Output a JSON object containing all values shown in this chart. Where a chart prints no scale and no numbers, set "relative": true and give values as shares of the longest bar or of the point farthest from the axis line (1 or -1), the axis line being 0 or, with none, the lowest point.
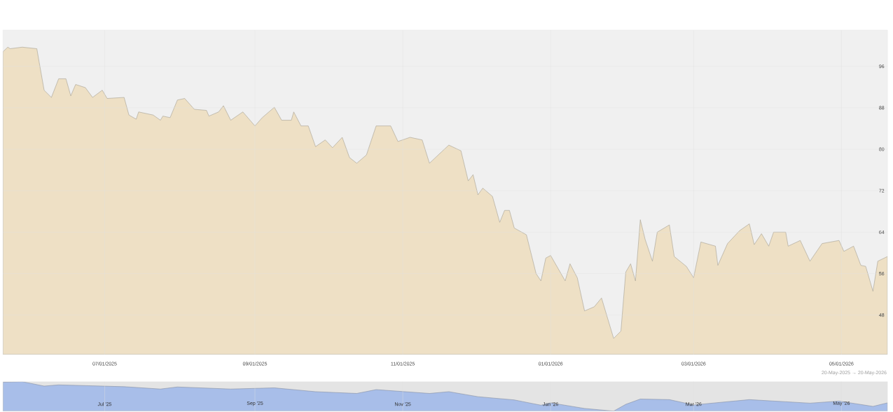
{
  "chart_data": [
    {
      "type": "area",
      "color": "#eee0c5",
      "grid": true,
      "xlim": [
        "2025-05-20",
        "2026-05-20"
      ],
      "ylim": [
        40.4,
        103
      ],
      "xticks": [
        {
          "value": "2025-07-01",
          "label": "07/01/2025"
        },
        {
          "value": "2025-09-01",
          "label": "09/01/2025"
        },
        {
          "value": "2025-11-01",
          "label": "11/01/2025"
        },
        {
          "value": "2026-01-01",
          "label": "01/01/2026"
        },
        {
          "value": "2026-03-01",
          "label": "03/01/2026"
        },
        {
          "value": "2026-05-01",
          "label": "05/01/2026"
        }
      ],
      "yticks": [
        48,
        56,
        64,
        72,
        80,
        88,
        96
      ],
      "x": [
        "2025-05-20",
        "2025-05-22",
        "2025-05-23",
        "2025-05-28",
        "2025-06-03",
        "2025-06-04",
        "2025-06-06",
        "2025-06-09",
        "2025-06-12",
        "2025-06-15",
        "2025-06-17",
        "2025-06-19",
        "2025-06-23",
        "2025-06-26",
        "2025-06-30",
        "2025-07-02",
        "2025-07-09",
        "2025-07-11",
        "2025-07-14",
        "2025-07-15",
        "2025-07-21",
        "2025-07-24",
        "2025-07-25",
        "2025-07-28",
        "2025-07-31",
        "2025-08-03",
        "2025-08-07",
        "2025-08-12",
        "2025-08-13",
        "2025-08-17",
        "2025-08-19",
        "2025-08-22",
        "2025-08-27",
        "2025-09-01",
        "2025-09-04",
        "2025-09-09",
        "2025-09-12",
        "2025-09-16",
        "2025-09-17",
        "2025-09-20",
        "2025-09-23",
        "2025-09-26",
        "2025-09-30",
        "2025-10-03",
        "2025-10-07",
        "2025-10-10",
        "2025-10-13",
        "2025-10-17",
        "2025-10-21",
        "2025-10-27",
        "2025-10-30",
        "2025-11-04",
        "2025-11-09",
        "2025-11-12",
        "2025-11-17",
        "2025-11-20",
        "2025-11-25",
        "2025-11-28",
        "2025-11-30",
        "2025-12-02",
        "2025-12-04",
        "2025-12-08",
        "2025-12-11",
        "2025-12-13",
        "2025-12-15",
        "2025-12-17",
        "2025-12-22",
        "2025-12-26",
        "2025-12-28",
        "2025-12-30",
        "2026-01-01",
        "2026-01-07",
        "2026-01-09",
        "2026-01-12",
        "2026-01-15",
        "2026-01-19",
        "2026-01-22",
        "2026-01-27",
        "2026-01-30",
        "2026-02-01",
        "2026-02-03",
        "2026-02-05",
        "2026-02-07",
        "2026-02-09",
        "2026-02-12",
        "2026-02-14",
        "2026-02-19",
        "2026-02-21",
        "2026-02-26",
        "2026-03-01",
        "2026-03-04",
        "2026-03-10",
        "2026-03-11",
        "2026-03-15",
        "2026-03-20",
        "2026-03-24",
        "2026-03-26",
        "2026-03-29",
        "2026-04-01",
        "2026-04-03",
        "2026-04-08",
        "2026-04-09",
        "2026-04-14",
        "2026-04-18",
        "2026-04-23",
        "2026-04-30",
        "2026-05-02",
        "2026-05-06",
        "2026-05-09",
        "2026-05-11",
        "2026-05-14",
        "2026-05-16",
        "2026-05-20"
      ],
      "values": [
        98.8,
        99.7,
        99.4,
        99.7,
        99.4,
        96.7,
        91.4,
        90.0,
        93.6,
        93.6,
        90.3,
        92.5,
        91.9,
        90.0,
        91.4,
        89.8,
        90.0,
        86.6,
        85.8,
        87.2,
        86.6,
        85.6,
        86.4,
        86.1,
        89.5,
        89.8,
        87.7,
        87.5,
        86.4,
        87.2,
        88.4,
        85.6,
        87.2,
        84.5,
        86.1,
        88.1,
        85.6,
        85.6,
        87.2,
        84.5,
        84.5,
        80.5,
        81.8,
        80.3,
        82.3,
        78.4,
        77.3,
        78.9,
        84.5,
        84.5,
        81.5,
        82.3,
        81.8,
        77.3,
        79.5,
        80.8,
        79.7,
        73.9,
        75.1,
        71.2,
        72.5,
        70.9,
        65.9,
        68.2,
        68.2,
        64.8,
        63.5,
        56.0,
        54.6,
        59.0,
        59.5,
        54.6,
        57.9,
        55.2,
        48.8,
        49.6,
        51.3,
        43.5,
        44.9,
        56.3,
        57.9,
        54.6,
        66.4,
        62.6,
        58.4,
        64.0,
        65.4,
        59.3,
        57.4,
        55.2,
        62.1,
        61.3,
        57.6,
        61.8,
        64.3,
        65.6,
        61.6,
        63.7,
        61.3,
        64.0,
        64.0,
        61.3,
        62.4,
        58.4,
        61.8,
        62.4,
        60.3,
        61.3,
        57.6,
        57.4,
        52.6,
        58.4,
        59.3
      ]
    },
    {
      "type": "area",
      "color": "#a8bee9",
      "grid": "x",
      "relative": true,
      "xlim": [
        "2025-05-20",
        "2026-05-20"
      ],
      "xticks": [
        {
          "value": "2025-07-01",
          "label": "Jul '25"
        },
        {
          "value": "2025-09-01",
          "label": "Sep '25"
        },
        {
          "value": "2025-11-01",
          "label": "Nov '25"
        },
        {
          "value": "2026-01-01",
          "label": "Jan '26"
        },
        {
          "value": "2026-03-01",
          "label": "Mar '26"
        },
        {
          "value": "2026-05-01",
          "label": "May '26"
        }
      ],
      "annotations": [
        "20-May-2025 → 20-May-2026"
      ],
      "x": [
        "2025-05-20",
        "2025-05-28",
        "2025-06-06",
        "2025-06-12",
        "2025-06-30",
        "2025-07-09",
        "2025-07-24",
        "2025-07-31",
        "2025-08-22",
        "2025-09-09",
        "2025-09-26",
        "2025-10-13",
        "2025-10-21",
        "2025-11-12",
        "2025-11-20",
        "2025-12-02",
        "2025-12-17",
        "2025-12-28",
        "2026-01-01",
        "2026-01-15",
        "2026-01-27",
        "2026-02-01",
        "2026-02-07",
        "2026-02-19",
        "2026-03-01",
        "2026-03-24",
        "2026-04-18",
        "2026-04-30",
        "2026-05-14",
        "2026-05-20"
      ],
      "values": [
        0.98,
        1,
        0.85,
        0.89,
        0.85,
        0.83,
        0.75,
        0.82,
        0.75,
        0.79,
        0.66,
        0.6,
        0.73,
        0.6,
        0.66,
        0.49,
        0.38,
        0.2,
        0.28,
        0.09,
        0,
        0.23,
        0.41,
        0.39,
        0.21,
        0.39,
        0.27,
        0.34,
        0.16,
        0.28
      ]
    }
  ]
}
